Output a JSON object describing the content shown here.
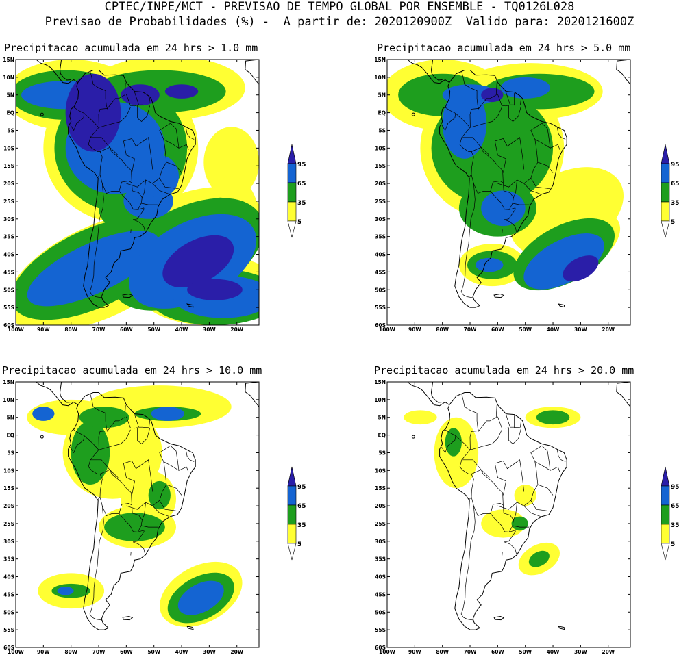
{
  "header": {
    "line1": "CPTEC/INPE/MCT - PREVISAO DE TEMPO GLOBAL POR ENSEMBLE - TQ0126L028",
    "line2": "Previsao de Probabilidades (%) -  A partir de: 2020120900Z  Valido para: 2020121600Z"
  },
  "panels": [
    {
      "title": "Precipitacao acumulada em 24 hrs > 1.0 mm",
      "threshold_mm": 1.0
    },
    {
      "title": "Precipitacao acumulada em 24 hrs > 5.0 mm",
      "threshold_mm": 5.0
    },
    {
      "title": "Precipitacao acumulada em 24 hrs > 10.0 mm",
      "threshold_mm": 10.0
    },
    {
      "title": "Precipitacao acumulada em 24 hrs > 20.0 mm",
      "threshold_mm": 20.0
    }
  ],
  "axes": {
    "lat_labels": [
      "15N",
      "10N",
      "5N",
      "EQ",
      "5S",
      "10S",
      "15S",
      "20S",
      "25S",
      "30S",
      "35S",
      "40S",
      "45S",
      "50S",
      "55S",
      "60S"
    ],
    "lon_labels": [
      "100W",
      "90W",
      "80W",
      "70W",
      "60W",
      "50W",
      "40W",
      "30W",
      "20W"
    ],
    "lon_range": [
      -100,
      -12
    ],
    "lat_range": [
      -60,
      15
    ]
  },
  "legend": {
    "labels": [
      "95",
      "65",
      "35",
      "5"
    ],
    "colors": {
      "yellow": "#ffff33",
      "green": "#1e9e1e",
      "blue": "#1464d2",
      "dark": "#2a1ea8"
    }
  }
}
